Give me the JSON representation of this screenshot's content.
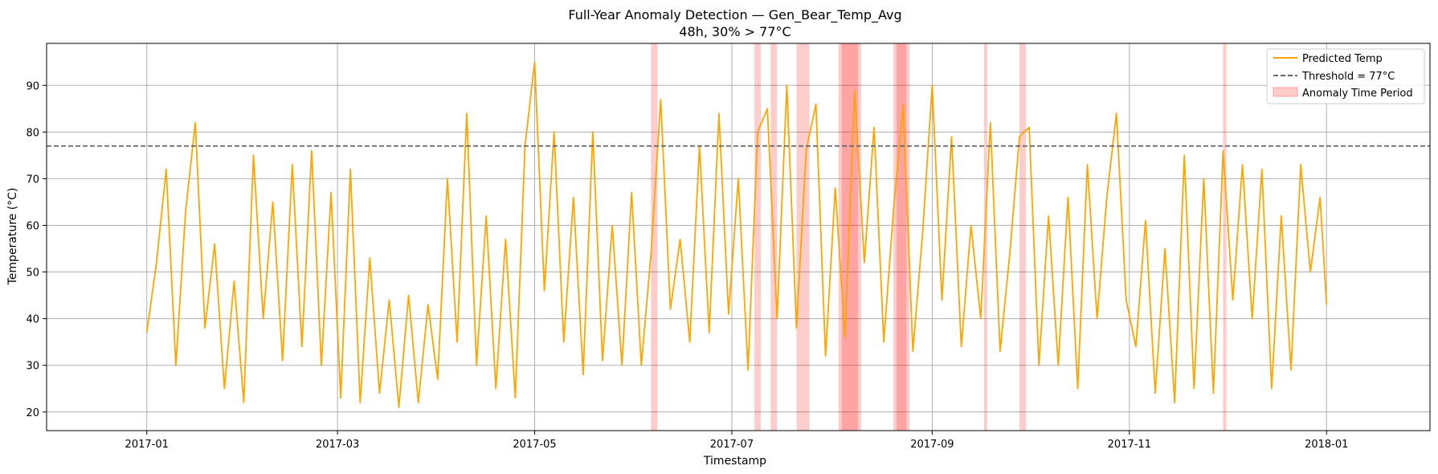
{
  "chart_data": {
    "type": "line",
    "title": "Full-Year Anomaly Detection — Gen_Bear_Temp_Avg",
    "subtitle": "48h, 30% > 77°C",
    "xlabel": "Timestamp",
    "ylabel": "Temperature (°C)",
    "xlim": [
      "2016-12-01",
      "2018-02-02"
    ],
    "ylim": [
      16,
      99
    ],
    "x_ticks": [
      {
        "date": "2017-01-01",
        "label": "2017-01"
      },
      {
        "date": "2017-03-01",
        "label": "2017-03"
      },
      {
        "date": "2017-05-01",
        "label": "2017-05"
      },
      {
        "date": "2017-07-01",
        "label": "2017-07"
      },
      {
        "date": "2017-09-01",
        "label": "2017-09"
      },
      {
        "date": "2017-11-01",
        "label": "2017-11"
      },
      {
        "date": "2018-01-01",
        "label": "2018-01"
      }
    ],
    "y_ticks": [
      20,
      30,
      40,
      50,
      60,
      70,
      80,
      90
    ],
    "grid": true,
    "threshold": {
      "value": 77,
      "name": "Threshold = 77°C",
      "color": "#666666"
    },
    "series": [
      {
        "name": "Predicted Temp",
        "color": "#ffa500",
        "points": [
          [
            "2017-01-01",
            37
          ],
          [
            "2017-01-04",
            52
          ],
          [
            "2017-01-07",
            72
          ],
          [
            "2017-01-10",
            30
          ],
          [
            "2017-01-13",
            63
          ],
          [
            "2017-01-16",
            82
          ],
          [
            "2017-01-19",
            38
          ],
          [
            "2017-01-22",
            56
          ],
          [
            "2017-01-25",
            25
          ],
          [
            "2017-01-28",
            48
          ],
          [
            "2017-01-31",
            22
          ],
          [
            "2017-02-03",
            75
          ],
          [
            "2017-02-06",
            40
          ],
          [
            "2017-02-09",
            65
          ],
          [
            "2017-02-12",
            31
          ],
          [
            "2017-02-15",
            73
          ],
          [
            "2017-02-18",
            34
          ],
          [
            "2017-02-21",
            76
          ],
          [
            "2017-02-24",
            30
          ],
          [
            "2017-02-27",
            67
          ],
          [
            "2017-03-02",
            23
          ],
          [
            "2017-03-05",
            72
          ],
          [
            "2017-03-08",
            22
          ],
          [
            "2017-03-11",
            53
          ],
          [
            "2017-03-14",
            24
          ],
          [
            "2017-03-17",
            44
          ],
          [
            "2017-03-20",
            21
          ],
          [
            "2017-03-23",
            45
          ],
          [
            "2017-03-26",
            22
          ],
          [
            "2017-03-29",
            43
          ],
          [
            "2017-04-01",
            27
          ],
          [
            "2017-04-04",
            70
          ],
          [
            "2017-04-07",
            35
          ],
          [
            "2017-04-10",
            84
          ],
          [
            "2017-04-13",
            30
          ],
          [
            "2017-04-16",
            62
          ],
          [
            "2017-04-19",
            25
          ],
          [
            "2017-04-22",
            57
          ],
          [
            "2017-04-25",
            23
          ],
          [
            "2017-04-28",
            77
          ],
          [
            "2017-05-01",
            95
          ],
          [
            "2017-05-04",
            46
          ],
          [
            "2017-05-07",
            80
          ],
          [
            "2017-05-10",
            35
          ],
          [
            "2017-05-13",
            66
          ],
          [
            "2017-05-16",
            28
          ],
          [
            "2017-05-19",
            80
          ],
          [
            "2017-05-22",
            31
          ],
          [
            "2017-05-25",
            60
          ],
          [
            "2017-05-28",
            30
          ],
          [
            "2017-05-31",
            67
          ],
          [
            "2017-06-03",
            30
          ],
          [
            "2017-06-06",
            54
          ],
          [
            "2017-06-09",
            87
          ],
          [
            "2017-06-12",
            42
          ],
          [
            "2017-06-15",
            57
          ],
          [
            "2017-06-18",
            35
          ],
          [
            "2017-06-21",
            77
          ],
          [
            "2017-06-24",
            37
          ],
          [
            "2017-06-27",
            84
          ],
          [
            "2017-06-30",
            41
          ],
          [
            "2017-07-03",
            70
          ],
          [
            "2017-07-06",
            29
          ],
          [
            "2017-07-09",
            80
          ],
          [
            "2017-07-12",
            85
          ],
          [
            "2017-07-15",
            40
          ],
          [
            "2017-07-18",
            90
          ],
          [
            "2017-07-21",
            38
          ],
          [
            "2017-07-24",
            76
          ],
          [
            "2017-07-27",
            86
          ],
          [
            "2017-07-30",
            32
          ],
          [
            "2017-08-02",
            68
          ],
          [
            "2017-08-05",
            36
          ],
          [
            "2017-08-08",
            89
          ],
          [
            "2017-08-11",
            52
          ],
          [
            "2017-08-14",
            81
          ],
          [
            "2017-08-17",
            35
          ],
          [
            "2017-08-20",
            63
          ],
          [
            "2017-08-23",
            86
          ],
          [
            "2017-08-26",
            33
          ],
          [
            "2017-08-29",
            58
          ],
          [
            "2017-09-01",
            90
          ],
          [
            "2017-09-04",
            44
          ],
          [
            "2017-09-07",
            79
          ],
          [
            "2017-09-10",
            34
          ],
          [
            "2017-09-13",
            60
          ],
          [
            "2017-09-16",
            40
          ],
          [
            "2017-09-19",
            82
          ],
          [
            "2017-09-22",
            33
          ],
          [
            "2017-09-25",
            54
          ],
          [
            "2017-09-28",
            79
          ],
          [
            "2017-10-01",
            81
          ],
          [
            "2017-10-04",
            30
          ],
          [
            "2017-10-07",
            62
          ],
          [
            "2017-10-10",
            30
          ],
          [
            "2017-10-13",
            66
          ],
          [
            "2017-10-16",
            25
          ],
          [
            "2017-10-19",
            73
          ],
          [
            "2017-10-22",
            40
          ],
          [
            "2017-10-25",
            66
          ],
          [
            "2017-10-28",
            84
          ],
          [
            "2017-10-31",
            44
          ],
          [
            "2017-11-03",
            34
          ],
          [
            "2017-11-06",
            61
          ],
          [
            "2017-11-09",
            24
          ],
          [
            "2017-11-12",
            55
          ],
          [
            "2017-11-15",
            22
          ],
          [
            "2017-11-18",
            75
          ],
          [
            "2017-11-21",
            25
          ],
          [
            "2017-11-24",
            70
          ],
          [
            "2017-11-27",
            24
          ],
          [
            "2017-11-30",
            76
          ],
          [
            "2017-12-03",
            44
          ],
          [
            "2017-12-06",
            73
          ],
          [
            "2017-12-09",
            40
          ],
          [
            "2017-12-12",
            72
          ],
          [
            "2017-12-15",
            25
          ],
          [
            "2017-12-18",
            62
          ],
          [
            "2017-12-21",
            29
          ],
          [
            "2017-12-24",
            73
          ],
          [
            "2017-12-27",
            50
          ],
          [
            "2017-12-30",
            66
          ],
          [
            "2018-01-01",
            43
          ]
        ]
      }
    ],
    "anomaly_periods": {
      "name": "Anomaly Time Period",
      "color": "#ff0000",
      "ranges": [
        [
          "2017-06-06",
          "2017-06-08"
        ],
        [
          "2017-07-08",
          "2017-07-10"
        ],
        [
          "2017-07-13",
          "2017-07-15"
        ],
        [
          "2017-07-21",
          "2017-07-25"
        ],
        [
          "2017-08-03",
          "2017-08-09"
        ],
        [
          "2017-08-04",
          "2017-08-10"
        ],
        [
          "2017-08-20",
          "2017-08-24"
        ],
        [
          "2017-08-21",
          "2017-08-25"
        ],
        [
          "2017-09-17",
          "2017-09-18"
        ],
        [
          "2017-09-28",
          "2017-09-30"
        ],
        [
          "2017-11-30",
          "2017-12-01"
        ]
      ]
    },
    "legend": {
      "position": "top-right",
      "entries": [
        "Predicted Temp",
        "Threshold = 77°C",
        "Anomaly Time Period"
      ]
    }
  }
}
